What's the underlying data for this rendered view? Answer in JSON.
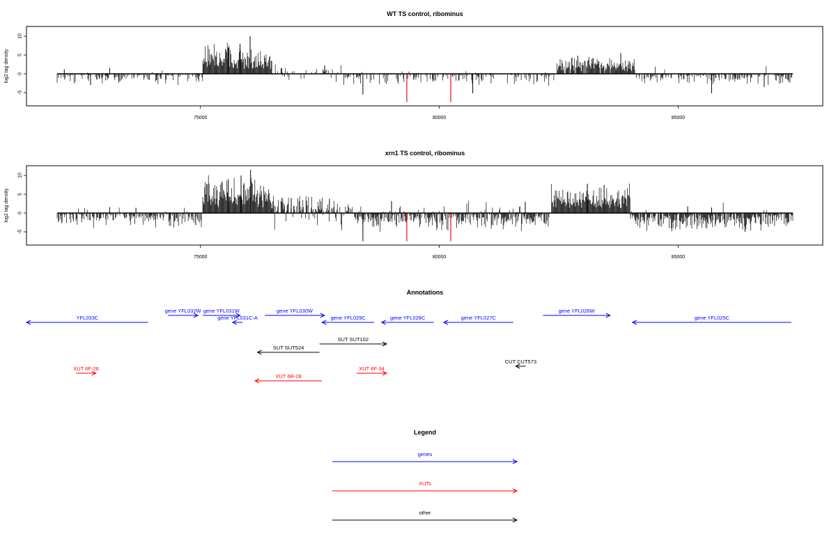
{
  "colors": {
    "gene": "#0000ff",
    "xut": "#ff0000",
    "other": "#000000",
    "highlight": "#ff0000",
    "bars": "#000000"
  },
  "panels": [
    {
      "title": "WT TS control, ribominus",
      "ylabel": "log2 tag density"
    },
    {
      "title": "xrn1 TS control, ribominus",
      "ylabel": "log2 tag density"
    }
  ],
  "annotations": {
    "title": "Annotations",
    "items": [
      {
        "label": "YFL033C",
        "class": "gene",
        "strand": "-",
        "start": 72000,
        "end": 74450,
        "row": 1
      },
      {
        "label": "gene YFL032W",
        "class": "gene",
        "strand": "+",
        "start": 74850,
        "end": 75450,
        "row": 0
      },
      {
        "label": "gene YFL031W",
        "class": "gene",
        "strand": "+",
        "start": 75550,
        "end": 76300,
        "row": 0
      },
      {
        "label": "gene YFL031C-A",
        "class": "gene",
        "strand": "-",
        "start": 76150,
        "end": 76350,
        "row": 1
      },
      {
        "label": "gene YFL030W",
        "class": "gene",
        "strand": "+",
        "start": 76800,
        "end": 78000,
        "row": 0
      },
      {
        "label": "gene YFL029C",
        "class": "gene",
        "strand": "-",
        "start": 77950,
        "end": 79000,
        "row": 1
      },
      {
        "label": "gene YFL028C",
        "class": "gene",
        "strand": "-",
        "start": 79150,
        "end": 80200,
        "row": 1
      },
      {
        "label": "gene YFL027C",
        "class": "gene",
        "strand": "-",
        "start": 80400,
        "end": 81800,
        "row": 1
      },
      {
        "label": "gene YFL026W",
        "class": "gene",
        "strand": "+",
        "start": 82400,
        "end": 83750,
        "row": 0
      },
      {
        "label": "gene YFL025C",
        "class": "gene",
        "strand": "-",
        "start": 84200,
        "end": 87400,
        "row": 1
      },
      {
        "label": "SUT SUT102",
        "class": "other",
        "strand": "+",
        "start": 77900,
        "end": 79250,
        "row": 2
      },
      {
        "label": "SUT SUT524",
        "class": "other",
        "strand": "-",
        "start": 76650,
        "end": 77900,
        "row": 3
      },
      {
        "label": "CUT CUT573",
        "class": "other",
        "strand": "-",
        "start": 81850,
        "end": 82050,
        "row": 4
      },
      {
        "label": "XUT 6F-28",
        "class": "xut",
        "strand": "+",
        "start": 73000,
        "end": 73400,
        "row": 5
      },
      {
        "label": "XUT 6F-34",
        "class": "xut",
        "strand": "+",
        "start": 78650,
        "end": 79250,
        "row": 5
      },
      {
        "label": "XUT 6R-28",
        "class": "xut",
        "strand": "-",
        "start": 76600,
        "end": 77950,
        "row": 6
      }
    ]
  },
  "legend": {
    "title": "Legend",
    "entries": [
      {
        "label": "genes",
        "class": "gene"
      },
      {
        "label": "XUTs",
        "class": "xut"
      },
      {
        "label": "other",
        "class": "other"
      }
    ]
  },
  "chart_data": [
    {
      "type": "bar",
      "title": "WT TS control, ribominus",
      "ylabel": "log2 tag density",
      "xlim": [
        71700,
        87550
      ],
      "ylim": [
        -8,
        12.5
      ],
      "xticks": [
        75000,
        80000,
        85000
      ],
      "yticks": [
        -5,
        0,
        5,
        10
      ],
      "highlight_positions": [
        79320,
        80240
      ],
      "highlight_value": -7.5,
      "regions": [
        {
          "x": [
            72000,
            75050
          ],
          "mean": -1.2,
          "amp": 1.5,
          "density": 0.55,
          "pos_frac": 0.04,
          "spikes": [
            [
              72150,
              1.2
            ],
            [
              73100,
              1.6
            ],
            [
              72700,
              -3.0
            ]
          ]
        },
        {
          "x": [
            75050,
            76500
          ],
          "mean": 4.8,
          "amp": 2.5,
          "density": 1,
          "pos_frac": 1,
          "spikes": [
            [
              76040,
              10
            ],
            [
              75580,
              7
            ],
            [
              75830,
              8
            ]
          ]
        },
        {
          "x": [
            76500,
            78000
          ],
          "mean": 1.0,
          "amp": 1.2,
          "density": 0.3,
          "pos_frac": 0.7,
          "spikes": [
            [
              76700,
              1.5
            ],
            [
              77600,
              2.2
            ]
          ]
        },
        {
          "x": [
            78000,
            82450
          ],
          "mean": -1.6,
          "amp": 1.8,
          "density": 0.4,
          "pos_frac": 0.05,
          "spikes": [
            [
              78400,
              -5.5
            ],
            [
              80700,
              -5.2
            ]
          ]
        },
        {
          "x": [
            82450,
            84100
          ],
          "mean": 3.0,
          "amp": 1.5,
          "density": 0.9,
          "pos_frac": 1,
          "spikes": [
            [
              83800,
              5.5
            ],
            [
              82900,
              4.8
            ]
          ]
        },
        {
          "x": [
            84100,
            87400
          ],
          "mean": -1.4,
          "amp": 1.6,
          "density": 0.6,
          "pos_frac": 0.03,
          "spikes": [
            [
              85700,
              -5.2
            ],
            [
              86800,
              -3.5
            ]
          ]
        }
      ]
    },
    {
      "type": "bar",
      "title": "xrn1 TS control, ribominus",
      "ylabel": "log2 tag density",
      "xlim": [
        71700,
        87550
      ],
      "ylim": [
        -8,
        12.5
      ],
      "xticks": [
        75000,
        80000,
        85000
      ],
      "yticks": [
        -5,
        0,
        5,
        10
      ],
      "highlight_positions": [
        79320,
        80240
      ],
      "highlight_value": -7.5,
      "regions": [
        {
          "x": [
            72000,
            75050
          ],
          "mean": -2.0,
          "amp": 1.5,
          "density": 0.6,
          "pos_frac": 0.06,
          "spikes": [
            [
              73100,
              1.6
            ],
            [
              73650,
              1.4
            ],
            [
              74900,
              -3.2
            ]
          ]
        },
        {
          "x": [
            75050,
            76500
          ],
          "mean": 5.8,
          "amp": 2.8,
          "density": 1,
          "pos_frac": 1,
          "spikes": [
            [
              76050,
              11.5
            ],
            [
              75580,
              9
            ],
            [
              75850,
              10
            ]
          ]
        },
        {
          "x": [
            76500,
            78200
          ],
          "mean": 2.3,
          "amp": 1.8,
          "density": 0.75,
          "pos_frac": 0.85,
          "spikes": [
            [
              76900,
              4.0
            ],
            [
              77700,
              3.8
            ]
          ]
        },
        {
          "x": [
            78200,
            82350
          ],
          "mean": -2.4,
          "amp": 2.2,
          "density": 0.85,
          "pos_frac": 0.12,
          "spikes": [
            [
              78400,
              -7.5
            ],
            [
              79000,
              3.2
            ],
            [
              81800,
              3.0
            ]
          ]
        },
        {
          "x": [
            82350,
            84000
          ],
          "mean": 4.8,
          "amp": 2.2,
          "density": 1,
          "pos_frac": 1,
          "spikes": [
            [
              83450,
              7.5
            ],
            [
              83100,
              7.8
            ]
          ]
        },
        {
          "x": [
            84000,
            87400
          ],
          "mean": -2.5,
          "amp": 2.0,
          "density": 0.85,
          "pos_frac": 0.03,
          "spikes": [
            [
              85200,
              1.8
            ],
            [
              85700,
              1.5
            ],
            [
              86400,
              -5.0
            ]
          ]
        }
      ]
    }
  ]
}
